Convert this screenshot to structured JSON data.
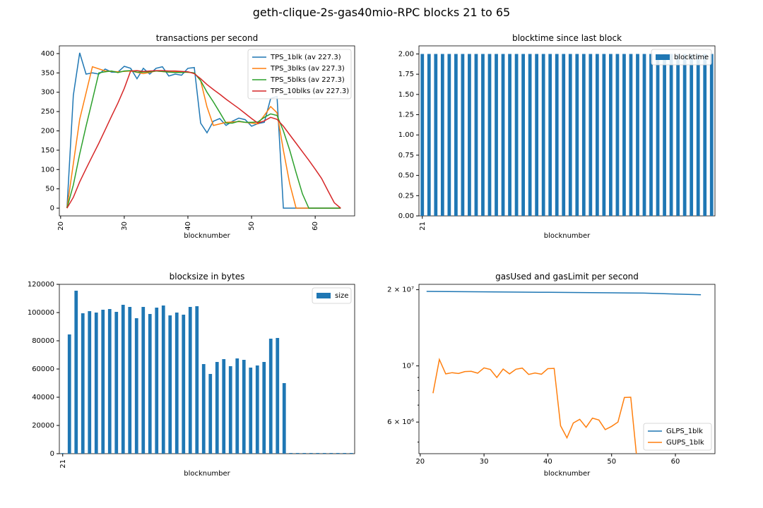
{
  "figure": {
    "title": "geth-clique-2s-gas40mio-RPC blocks 21 to 65"
  },
  "colors": {
    "blue": "#1f77b4",
    "orange": "#ff7f0e",
    "green": "#2ca02c",
    "red": "#d62728"
  },
  "chart_data": [
    {
      "type": "line",
      "title": "transactions per second",
      "xlabel": "blocknumber",
      "ylabel": "",
      "xlim": [
        19.8,
        66.2
      ],
      "ylim": [
        -20,
        420
      ],
      "xticks": [
        20,
        30,
        40,
        50,
        60
      ],
      "yticks": [
        0,
        50,
        100,
        150,
        200,
        250,
        300,
        350,
        400
      ],
      "grid": false,
      "legend": "top-right",
      "x": [
        21,
        22,
        23,
        24,
        25,
        26,
        27,
        28,
        29,
        30,
        31,
        32,
        33,
        34,
        35,
        36,
        37,
        38,
        39,
        40,
        41,
        42,
        43,
        44,
        45,
        46,
        47,
        48,
        49,
        50,
        51,
        52,
        53,
        54,
        55,
        56,
        57,
        58,
        59,
        60,
        61,
        62,
        63,
        64
      ],
      "series": [
        {
          "name": "TPS_1blk (av 227.3)",
          "color": "#1f77b4",
          "values": [
            0,
            292,
            402,
            347,
            350,
            347,
            360,
            352,
            352,
            367,
            362,
            335,
            362,
            347,
            362,
            366,
            342,
            347,
            344,
            362,
            364,
            220,
            195,
            225,
            232,
            214,
            225,
            233,
            229,
            212,
            219,
            222,
            284,
            289,
            0,
            0,
            0,
            0,
            0,
            0,
            0,
            0,
            0,
            0
          ]
        },
        {
          "name": "TPS_3blks (av 227.3)",
          "color": "#ff7f0e",
          "x": [
            21,
            23,
            25,
            27,
            29,
            31,
            33,
            35,
            37,
            39,
            41,
            42,
            43,
            44,
            45,
            46,
            47,
            48,
            49,
            50,
            51,
            52,
            53,
            54,
            55,
            56,
            57,
            58,
            59,
            60,
            61,
            62,
            63,
            64
          ],
          "values": [
            0,
            230,
            366,
            355,
            353,
            355,
            348,
            355,
            352,
            353,
            350,
            330,
            262,
            214,
            218,
            222,
            223,
            224,
            222,
            220,
            218,
            240,
            263,
            247,
            150,
            63,
            0,
            0,
            0,
            0,
            0,
            0,
            0,
            0
          ]
        },
        {
          "name": "TPS_5blks (av 227.3)",
          "color": "#2ca02c",
          "x": [
            21,
            22,
            23,
            24,
            25,
            26,
            27,
            28,
            29,
            30,
            31,
            32,
            33,
            34,
            35,
            36,
            37,
            38,
            39,
            40,
            41,
            42,
            43,
            44,
            45,
            46,
            47,
            48,
            49,
            50,
            51,
            52,
            53,
            54,
            55,
            56,
            57,
            58,
            59,
            60,
            61,
            62,
            63,
            64
          ],
          "values": [
            0,
            60,
            140,
            212,
            280,
            350,
            353,
            355,
            351,
            355,
            356,
            352,
            352,
            353,
            355,
            354,
            352,
            351,
            351,
            352,
            350,
            330,
            300,
            275,
            248,
            220,
            220,
            225,
            222,
            222,
            223,
            235,
            244,
            240,
            200,
            150,
            92,
            37,
            0,
            0,
            0,
            0,
            0,
            0
          ]
        },
        {
          "name": "TPS_10blks (av 227.3)",
          "color": "#d62728",
          "x": [
            21,
            22,
            23,
            24,
            25,
            26,
            27,
            28,
            29,
            30,
            31,
            32,
            33,
            34,
            35,
            36,
            37,
            38,
            39,
            40,
            41,
            42,
            43,
            44,
            45,
            46,
            47,
            48,
            49,
            50,
            51,
            52,
            53,
            54,
            55,
            56,
            57,
            58,
            59,
            60,
            61,
            62,
            63,
            64
          ],
          "values": [
            0,
            28,
            68,
            102,
            135,
            168,
            203,
            238,
            272,
            310,
            355,
            356,
            354,
            355,
            356,
            356,
            355,
            355,
            354,
            353,
            348,
            335,
            320,
            307,
            295,
            282,
            270,
            258,
            245,
            232,
            220,
            226,
            235,
            230,
            212,
            190,
            168,
            146,
            124,
            101,
            77,
            45,
            14,
            0
          ]
        }
      ]
    },
    {
      "type": "bar",
      "title": "blocktime since last block",
      "xlabel": "blocknumber",
      "ylabel": "",
      "ylim": [
        0,
        2.1
      ],
      "yticks": [
        "0.00",
        "0.25",
        "0.50",
        "0.75",
        "1.00",
        "1.25",
        "1.50",
        "1.75",
        "2.00"
      ],
      "xticks": [
        "21"
      ],
      "categories": [
        21,
        22,
        23,
        24,
        25,
        26,
        27,
        28,
        29,
        30,
        31,
        32,
        33,
        34,
        35,
        36,
        37,
        38,
        39,
        40,
        41,
        42,
        43,
        44,
        45,
        46,
        47,
        48,
        49,
        50,
        51,
        52,
        53,
        54,
        55,
        56,
        57,
        58,
        59,
        60,
        61,
        62,
        63,
        64
      ],
      "series": [
        {
          "name": "blocktime",
          "color": "#1f77b4",
          "values": [
            2,
            2,
            2,
            2,
            2,
            2,
            2,
            2,
            2,
            2,
            2,
            2,
            2,
            2,
            2,
            2,
            2,
            2,
            2,
            2,
            2,
            2,
            2,
            2,
            2,
            2,
            2,
            2,
            2,
            2,
            2,
            2,
            2,
            2,
            2,
            2,
            2,
            2,
            2,
            2,
            2,
            2,
            2,
            2
          ]
        }
      ],
      "legend": "top-right",
      "grid": false
    },
    {
      "type": "bar",
      "title": "blocksize in bytes",
      "xlabel": "blocknumber",
      "ylabel": "",
      "ylim": [
        0,
        120000
      ],
      "yticks": [
        0,
        20000,
        40000,
        60000,
        80000,
        100000,
        120000
      ],
      "xticks": [
        "21"
      ],
      "categories": [
        21,
        22,
        23,
        24,
        25,
        26,
        27,
        28,
        29,
        30,
        31,
        32,
        33,
        34,
        35,
        36,
        37,
        38,
        39,
        40,
        41,
        42,
        43,
        44,
        45,
        46,
        47,
        48,
        49,
        50,
        51,
        52,
        53,
        54,
        55,
        56,
        57,
        58,
        59,
        60,
        61,
        62,
        63,
        64
      ],
      "series": [
        {
          "name": "size",
          "color": "#1f77b4",
          "values": [
            400,
            84500,
            115500,
            99500,
            101000,
            100000,
            102000,
            102500,
            100500,
            105500,
            104000,
            96000,
            104000,
            99000,
            103500,
            105000,
            98000,
            100000,
            98500,
            104000,
            104500,
            63500,
            56500,
            65000,
            67000,
            62000,
            67500,
            66500,
            61000,
            62500,
            65000,
            81500,
            82000,
            50000,
            500,
            500,
            500,
            500,
            500,
            500,
            500,
            500,
            500,
            500
          ]
        }
      ],
      "legend": "top-right",
      "grid": false
    },
    {
      "type": "line",
      "title": "gasUsed and gasLimit per second",
      "xlabel": "blocknumber",
      "ylabel": "",
      "yscale": "log",
      "ylim": [
        4500000,
        21000000
      ],
      "xlim": [
        19.8,
        66.2
      ],
      "xticks": [
        20,
        30,
        40,
        50,
        60
      ],
      "yticks": [
        "2 × 10⁷",
        "10⁷",
        "6 × 10⁶"
      ],
      "legend": "bottom-right",
      "grid": false,
      "series": [
        {
          "name": "GLPS_1blk",
          "color": "#1f77b4",
          "x": [
            21,
            30,
            40,
            50,
            55,
            60,
            64
          ],
          "values": [
            19700000,
            19620000,
            19530000,
            19440000,
            19390000,
            19230000,
            19100000
          ]
        },
        {
          "name": "GUPS_1blk",
          "color": "#ff7f0e",
          "x": [
            22,
            23,
            24,
            25,
            26,
            27,
            28,
            29,
            30,
            31,
            32,
            33,
            34,
            35,
            36,
            37,
            38,
            39,
            40,
            41,
            42,
            43,
            44,
            45,
            46,
            47,
            48,
            49,
            50,
            51,
            52,
            53,
            54
          ],
          "values": [
            7800000,
            10600000,
            9300000,
            9400000,
            9330000,
            9500000,
            9520000,
            9360000,
            9820000,
            9680000,
            9000000,
            9720000,
            9300000,
            9700000,
            9800000,
            9250000,
            9380000,
            9270000,
            9750000,
            9780000,
            5800000,
            5200000,
            5950000,
            6150000,
            5720000,
            6220000,
            6110000,
            5600000,
            5770000,
            6000000,
            7500000,
            7520000,
            4200000
          ]
        }
      ]
    }
  ]
}
